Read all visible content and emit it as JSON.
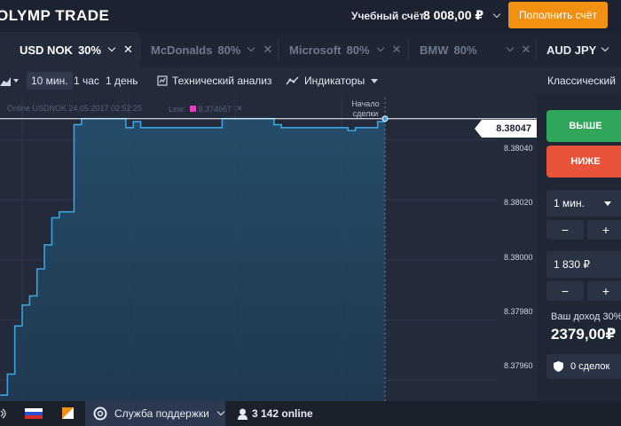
{
  "header": {
    "logo": "OLYMP TRADE",
    "account_label": "Учебный счёт",
    "balance": "8 008,00 ₽",
    "deposit_label": "Пополнить счёт"
  },
  "tabs": [
    {
      "name": "USD NOK",
      "pct": "30%",
      "active": true
    },
    {
      "name": "McDonalds",
      "pct": "80%",
      "active": false
    },
    {
      "name": "Microsoft",
      "pct": "80%",
      "active": false
    },
    {
      "name": "BMW",
      "pct": "80%",
      "active": false
    },
    {
      "name": "AUD JPY",
      "pct": "",
      "active": false
    }
  ],
  "toolbar": {
    "tf_10m": "10 мин.",
    "tf_1h": "1 час",
    "tf_1d": "1 день",
    "tech_analysis": "Технический анализ",
    "indicators": "Индикаторы",
    "chart_type": "Классический"
  },
  "chart": {
    "info": "Online USDNOK 24.05.2017 02:52:25",
    "line_label": "Line:",
    "line_value": "8.374667",
    "start_label_1": "Начало",
    "start_label_2": "сделки",
    "current_price": "8.38047",
    "y_ticks": [
      "8.38040",
      "8.38020",
      "8.38000",
      "8.37980",
      "8.37960"
    ]
  },
  "chart_data": {
    "type": "area",
    "y_ticks": [
      8.3804,
      8.3802,
      8.38,
      8.3798,
      8.3796
    ],
    "ylim": [
      8.37953,
      8.38054
    ],
    "current": 8.38047,
    "values": [
      8.37955,
      8.37962,
      8.37978,
      8.37985,
      8.37988,
      8.37997,
      8.38005,
      8.38014,
      8.38016,
      8.38016,
      8.38045,
      8.38047,
      8.38047,
      8.38047,
      8.38047,
      8.38047,
      8.38047,
      8.38044,
      8.38046,
      8.38044,
      8.38044,
      8.38044,
      8.38044,
      8.38044,
      8.38044,
      8.38044,
      8.38044,
      8.38044,
      8.38044,
      8.38044,
      8.38047,
      8.38047,
      8.38047,
      8.38047,
      8.38047,
      8.38047,
      8.38047,
      8.38045,
      8.38044,
      8.38044,
      8.38044,
      8.38044,
      8.38044,
      8.38044,
      8.38044,
      8.38044,
      8.38044,
      8.38043,
      8.38044,
      8.38044,
      8.38044,
      8.38046,
      8.38047
    ]
  },
  "panel": {
    "up": "ВЫШЕ",
    "down": "НИЖЕ",
    "duration": "1 мин.",
    "amount": "1 830 ₽",
    "income_label": "Ваш доход 30%",
    "income_value": "2379,00₽",
    "deals": "0 сделок"
  },
  "footer": {
    "support": "Служба поддержки",
    "online": "3 142 online"
  }
}
